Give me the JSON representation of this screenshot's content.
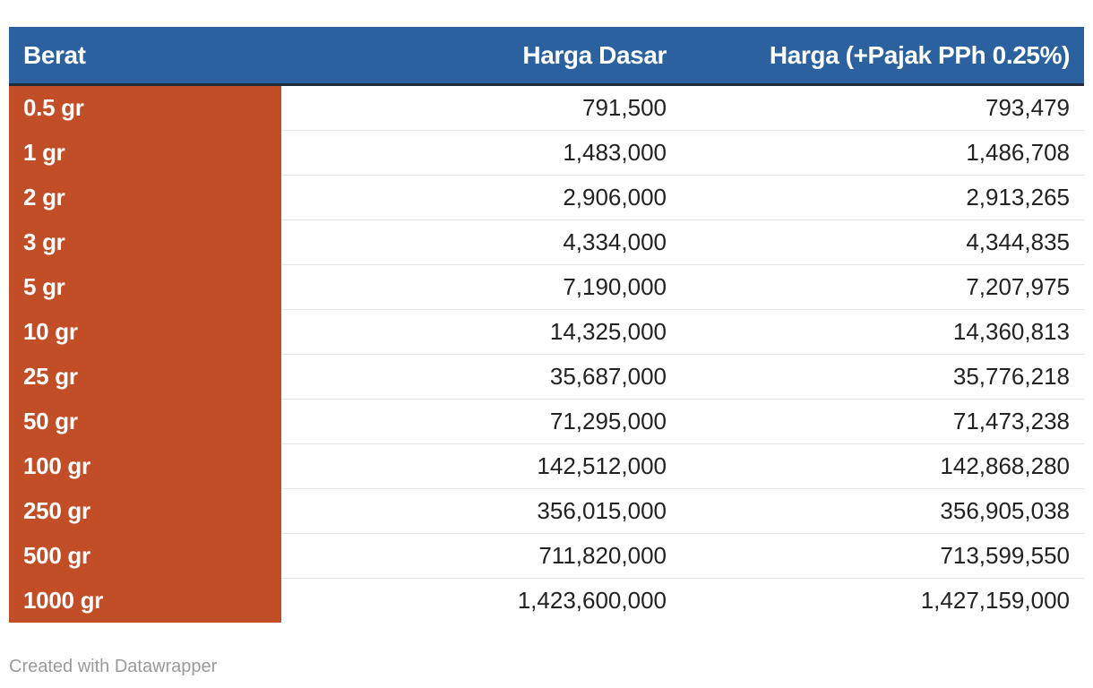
{
  "chart_data": {
    "type": "table",
    "columns": [
      "Berat",
      "Harga Dasar",
      "Harga (+Pajak PPh 0.25%)"
    ],
    "rows": [
      [
        "0.5 gr",
        "791,500",
        "793,479"
      ],
      [
        "1 gr",
        "1,483,000",
        "1,486,708"
      ],
      [
        "2 gr",
        "2,906,000",
        "2,913,265"
      ],
      [
        "3 gr",
        "4,334,000",
        "4,344,835"
      ],
      [
        "5 gr",
        "7,190,000",
        "7,207,975"
      ],
      [
        "10 gr",
        "14,325,000",
        "14,360,813"
      ],
      [
        "25 gr",
        "35,687,000",
        "35,776,218"
      ],
      [
        "50 gr",
        "71,295,000",
        "71,473,238"
      ],
      [
        "100 gr",
        "142,512,000",
        "142,868,280"
      ],
      [
        "250 gr",
        "356,015,000",
        "356,905,038"
      ],
      [
        "500 gr",
        "711,820,000",
        "713,599,550"
      ],
      [
        "1000 gr",
        "1,423,600,000",
        "1,427,159,000"
      ]
    ]
  },
  "footer": {
    "credit": "Created with Datawrapper"
  },
  "colors": {
    "header_bg": "#2b619e",
    "first_column_bg": "#c24e28"
  }
}
